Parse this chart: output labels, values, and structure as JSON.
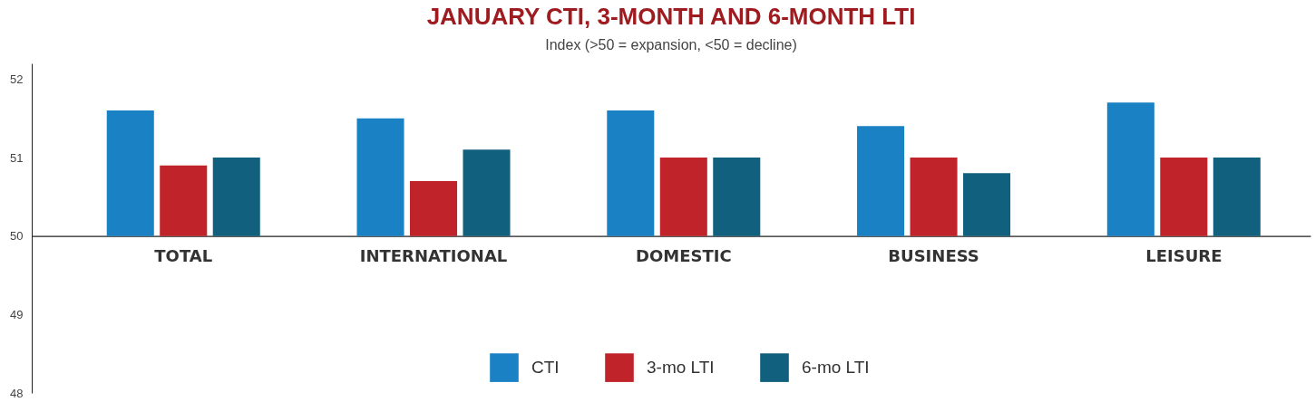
{
  "chart_data": {
    "type": "bar",
    "title": "JANUARY CTI, 3-MONTH AND 6-MONTH LTI",
    "subtitle": "Index (>50 = expansion, <50 = decline)",
    "categories": [
      "TOTAL",
      "INTERNATIONAL",
      "DOMESTIC",
      "BUSINESS",
      "LEISURE"
    ],
    "series": [
      {
        "name": "CTI",
        "color": "#1a82c4",
        "base": [
          50,
          50,
          50,
          50,
          50
        ],
        "values": [
          1.6,
          1.5,
          1.6,
          1.4,
          1.7
        ]
      },
      {
        "name": "3-mo LTI",
        "color": "#c0242a",
        "base": [
          50,
          50,
          50,
          50,
          50
        ],
        "values": [
          0.9,
          0.7,
          1.0,
          1.0,
          1.0
        ]
      },
      {
        "name": "6-mo LTI",
        "color": "#11607d",
        "base": [
          50,
          50,
          50,
          50,
          50
        ],
        "values": [
          1.0,
          1.1,
          1.0,
          0.8,
          1.0
        ]
      }
    ],
    "ylim": [
      48,
      52.2
    ],
    "yticks": [
      48,
      49,
      50,
      51,
      52
    ],
    "grid": false,
    "legend": "bottom"
  }
}
